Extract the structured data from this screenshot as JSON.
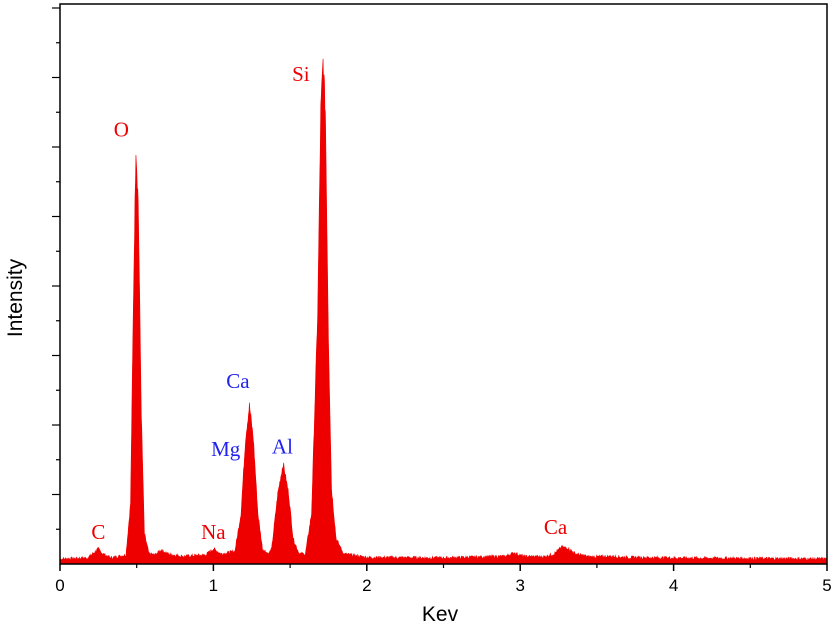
{
  "chart_data": {
    "type": "area",
    "title": "",
    "xlabel": "Kev",
    "ylabel": "Intensity",
    "xlim": [
      0,
      5
    ],
    "ylim": [
      0,
      100
    ],
    "x_ticks": [
      "0",
      "1",
      "2",
      "3",
      "4",
      "5"
    ],
    "y_ticks_labeled": false,
    "grid": false,
    "series": [
      {
        "color": "#ee0000",
        "baseline": 1,
        "points": [
          [
            0.0,
            1.0
          ],
          [
            0.18,
            1.2
          ],
          [
            0.22,
            2.2
          ],
          [
            0.25,
            3.0
          ],
          [
            0.28,
            2.0
          ],
          [
            0.33,
            1.2
          ],
          [
            0.43,
            1.8
          ],
          [
            0.46,
            12.0
          ],
          [
            0.48,
            55.0
          ],
          [
            0.495,
            83.0
          ],
          [
            0.51,
            72.0
          ],
          [
            0.53,
            30.0
          ],
          [
            0.55,
            6.0
          ],
          [
            0.58,
            2.0
          ],
          [
            0.62,
            1.8
          ],
          [
            0.66,
            2.8
          ],
          [
            0.7,
            2.0
          ],
          [
            0.8,
            1.5
          ],
          [
            0.95,
            1.8
          ],
          [
            1.0,
            3.0
          ],
          [
            1.05,
            2.0
          ],
          [
            1.14,
            2.5
          ],
          [
            1.18,
            10.0
          ],
          [
            1.21,
            25.0
          ],
          [
            1.235,
            31.5
          ],
          [
            1.26,
            25.0
          ],
          [
            1.29,
            10.0
          ],
          [
            1.32,
            3.0
          ],
          [
            1.36,
            2.0
          ],
          [
            1.38,
            3.0
          ],
          [
            1.42,
            14.0
          ],
          [
            1.455,
            20.0
          ],
          [
            1.49,
            14.0
          ],
          [
            1.52,
            5.0
          ],
          [
            1.56,
            2.0
          ],
          [
            1.6,
            2.0
          ],
          [
            1.64,
            10.0
          ],
          [
            1.68,
            50.0
          ],
          [
            1.7,
            90.0
          ],
          [
            1.715,
            100.0
          ],
          [
            1.73,
            90.0
          ],
          [
            1.75,
            45.0
          ],
          [
            1.77,
            15.0
          ],
          [
            1.8,
            5.0
          ],
          [
            1.85,
            2.0
          ],
          [
            2.0,
            1.3
          ],
          [
            2.5,
            1.2
          ],
          [
            2.9,
            1.5
          ],
          [
            2.96,
            2.2
          ],
          [
            3.02,
            1.5
          ],
          [
            3.15,
            1.4
          ],
          [
            3.22,
            2.0
          ],
          [
            3.27,
            3.3
          ],
          [
            3.31,
            3.2
          ],
          [
            3.36,
            2.0
          ],
          [
            3.45,
            1.4
          ],
          [
            3.6,
            1.5
          ],
          [
            3.7,
            1.3
          ],
          [
            4.0,
            1.2
          ],
          [
            4.5,
            1.1
          ],
          [
            5.0,
            1.0
          ]
        ]
      }
    ],
    "annotations": [
      {
        "text": "C",
        "x": 0.25,
        "y": 5,
        "color": "#ee0000"
      },
      {
        "text": "O",
        "x": 0.4,
        "y": 85,
        "color": "#ee0000"
      },
      {
        "text": "Na",
        "x": 1.0,
        "y": 5,
        "color": "#ee0000"
      },
      {
        "text": "Ca",
        "x": 1.16,
        "y": 35,
        "color": "#2222ee"
      },
      {
        "text": "Mg",
        "x": 1.08,
        "y": 21.5,
        "color": "#2222ee"
      },
      {
        "text": "Al",
        "x": 1.45,
        "y": 22,
        "color": "#2222ee"
      },
      {
        "text": "Si",
        "x": 1.57,
        "y": 96,
        "color": "#ee0000"
      },
      {
        "text": "Ca",
        "x": 3.23,
        "y": 6,
        "color": "#ee0000"
      }
    ]
  }
}
